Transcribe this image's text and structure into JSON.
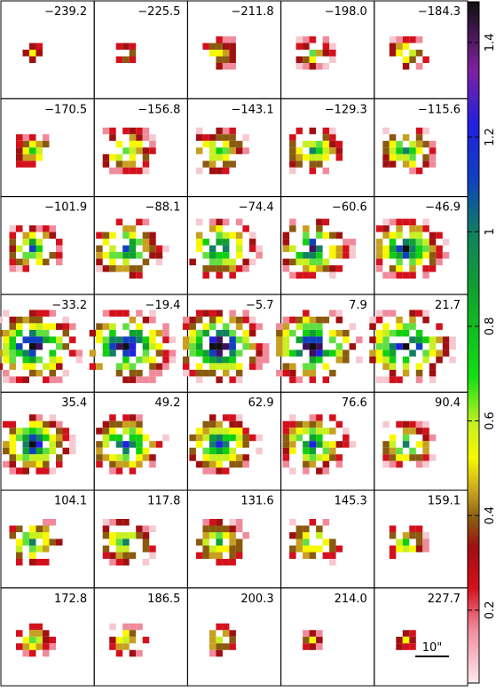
{
  "panels": [
    "−239.2",
    "−225.5",
    "−211.8",
    "−198.0",
    "−184.3",
    "−170.5",
    "−156.8",
    "−143.1",
    "−129.3",
    "−115.6",
    "−101.9",
    "−88.1",
    "−74.4",
    "−60.6",
    "−46.9",
    "−33.2",
    "−19.4",
    "−5.7",
    "7.9",
    "21.7",
    "35.4",
    "49.2",
    "62.9",
    "76.6",
    "90.4",
    "104.1",
    "117.8",
    "131.6",
    "145.3",
    "159.1",
    "172.8",
    "186.5",
    "200.3",
    "214.0",
    "227.7"
  ],
  "colorbar": {
    "ticks": [
      0.2,
      0.4,
      0.6,
      0.8,
      1,
      1.2,
      1.4
    ],
    "range": [
      0.046,
      1.486
    ]
  },
  "scale_bar": "10\""
}
